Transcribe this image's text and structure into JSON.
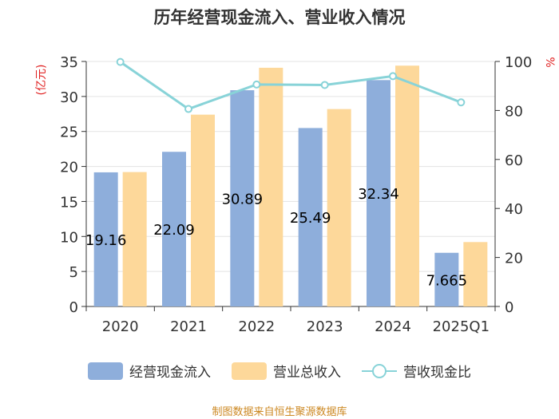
{
  "chart_data": {
    "type": "bar",
    "title": "历年经营现金流入、营业收入情况",
    "categories": [
      "2020",
      "2021",
      "2022",
      "2023",
      "2024",
      "2025Q1"
    ],
    "series": [
      {
        "name": "经营现金流入",
        "kind": "bar",
        "axis": "left",
        "color": "#8eaedb",
        "values": [
          19.16,
          22.09,
          30.89,
          25.49,
          32.34,
          7.665
        ],
        "labels": [
          "19.16",
          "22.09",
          "30.89",
          "25.49",
          "32.34",
          "7.665"
        ]
      },
      {
        "name": "营业总收入",
        "kind": "bar",
        "axis": "left",
        "color": "#fdd89a",
        "values": [
          19.2,
          27.4,
          34.1,
          28.2,
          34.4,
          9.2
        ]
      },
      {
        "name": "营收现金比",
        "kind": "line",
        "axis": "right",
        "color": "#88d3d8",
        "values": [
          99.8,
          80.6,
          90.6,
          90.4,
          94.0,
          83.3
        ]
      }
    ],
    "ylabel": "(亿元)",
    "ylabel_right": "%",
    "ylim": [
      0,
      35
    ],
    "y_ticks": [
      "0",
      "5",
      "10",
      "15",
      "20",
      "25",
      "30",
      "35"
    ],
    "ylim_right": [
      0,
      100
    ],
    "y_ticks_right": [
      "0",
      "20",
      "40",
      "60",
      "80",
      "100"
    ],
    "grid": true,
    "legend": "bottom-center"
  },
  "legend": {
    "items": [
      {
        "label": "经营现金流入",
        "color": "#8eaedb"
      },
      {
        "label": "营业总收入",
        "color": "#fdd89a"
      },
      {
        "label": "营收现金比",
        "color": "#88d3d8"
      }
    ]
  },
  "footer": {
    "source": "制图数据来自恒生聚源数据库"
  }
}
